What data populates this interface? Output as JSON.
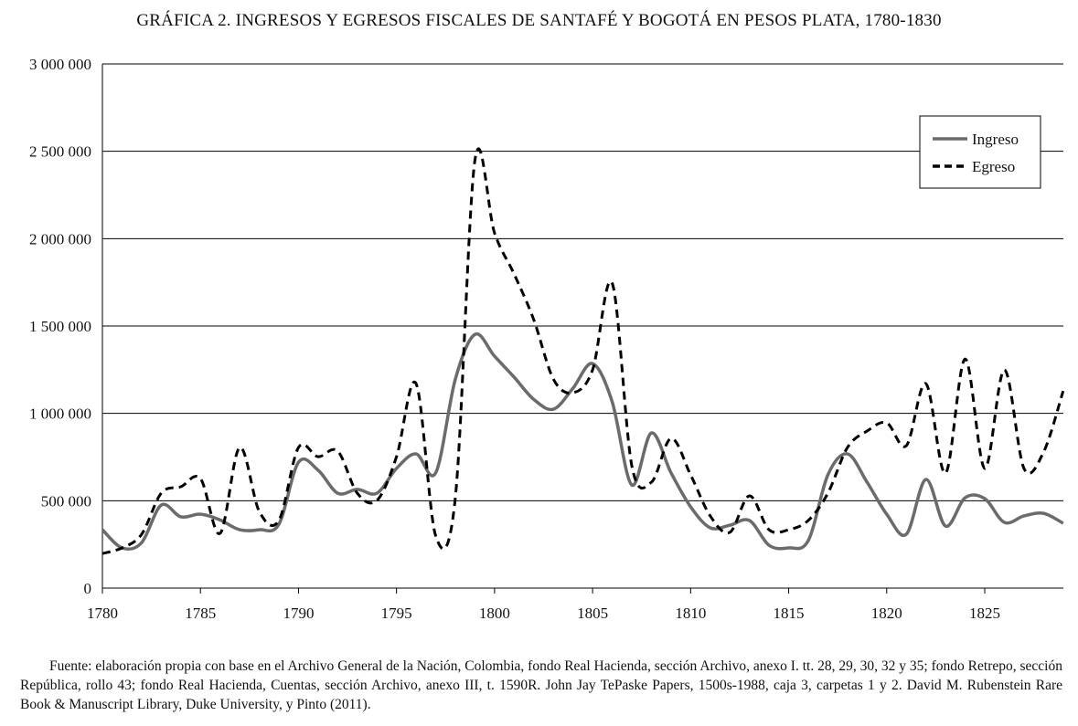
{
  "chart_data": {
    "type": "line",
    "title": "GRÁFICA 2. INGRESOS Y EGRESOS FISCALES DE SANTAFÉ Y BOGOTÁ EN PESOS PLATA, 1780-1830",
    "xlabel": "",
    "ylabel": "",
    "xlim": [
      1780,
      1829
    ],
    "ylim": [
      0,
      3000000
    ],
    "grid": true,
    "legend_position": "top-right",
    "y_ticks": [
      "0",
      "500 000",
      "1 000 000",
      "1 500 000",
      "2 000 000",
      "2 500 000",
      "3 000 000"
    ],
    "y_tick_values": [
      0,
      500000,
      1000000,
      1500000,
      2000000,
      2500000,
      3000000
    ],
    "x_ticks": [
      "1780",
      "1785",
      "1790",
      "1795",
      "1800",
      "1805",
      "1810",
      "1815",
      "1820",
      "1825"
    ],
    "x_tick_values": [
      1780,
      1785,
      1790,
      1795,
      1800,
      1805,
      1810,
      1815,
      1820,
      1825
    ],
    "x": [
      1780,
      1781,
      1782,
      1783,
      1784,
      1785,
      1786,
      1787,
      1788,
      1789,
      1790,
      1791,
      1792,
      1793,
      1794,
      1795,
      1796,
      1797,
      1798,
      1799,
      1800,
      1801,
      1802,
      1803,
      1804,
      1805,
      1806,
      1807,
      1808,
      1809,
      1810,
      1811,
      1812,
      1813,
      1814,
      1815,
      1816,
      1817,
      1818,
      1819,
      1820,
      1821,
      1822,
      1823,
      1824,
      1825,
      1826,
      1827,
      1828,
      1829
    ],
    "series": [
      {
        "name": "Ingreso",
        "color": "#6b6b6b",
        "style": "solid",
        "values": [
          334000,
          230000,
          260000,
          475000,
          408000,
          423000,
          390000,
          334000,
          334000,
          365000,
          720000,
          675000,
          543000,
          565000,
          543000,
          685000,
          768000,
          660000,
          1196000,
          1452000,
          1327000,
          1207000,
          1080000,
          1024000,
          1144000,
          1285000,
          1066000,
          590000,
          888000,
          660000,
          465000,
          345000,
          360000,
          387000,
          245000,
          230000,
          272000,
          648000,
          768000,
          606000,
          423000,
          308000,
          622000,
          355000,
          517000,
          512000,
          376000,
          413000,
          428000,
          371000
        ]
      },
      {
        "name": "Egreso",
        "color": "#000000",
        "style": "dashed",
        "values": [
          198000,
          230000,
          308000,
          543000,
          580000,
          627000,
          313000,
          805000,
          439000,
          387000,
          805000,
          752000,
          784000,
          543000,
          502000,
          752000,
          1170000,
          298000,
          517000,
          2450000,
          2032000,
          1797000,
          1536000,
          1196000,
          1118000,
          1249000,
          1745000,
          700000,
          606000,
          857000,
          648000,
          413000,
          319000,
          528000,
          334000,
          334000,
          387000,
          543000,
          805000,
          899000,
          946000,
          815000,
          1170000,
          658000,
          1311000,
          685000,
          1249000,
          685000,
          778000,
          1128000
        ]
      }
    ]
  },
  "source_note": "Fuente: elaboración propia con base en el Archivo General de la Nación, Colombia, fondo Real Hacienda, sección Archivo, anexo I. tt. 28, 29, 30, 32 y 35; fondo Retrepo, sección República, rollo 43; fondo Real Hacienda, Cuentas, sección Archivo, anexo III, t. 1590R. John Jay TePaske Papers, 1500s-1988, caja 3, carpetas 1 y 2. David M. Rubenstein Rare Book & Manuscript Library, Duke University, y Pinto (2011)."
}
